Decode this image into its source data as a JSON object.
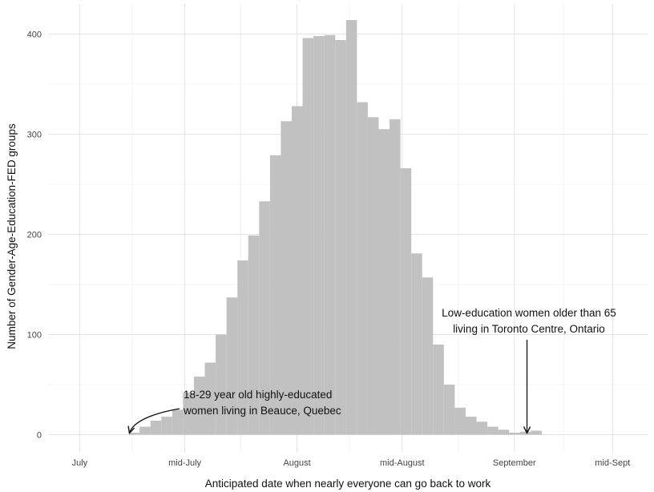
{
  "chart_data": {
    "type": "bar",
    "title": "",
    "xlabel": "Anticipated date when nearly everyone can go back to work",
    "ylabel": "Number of Gender-Age-Education-FED groups",
    "x_unit": "days after July 1",
    "x_ticks": [
      {
        "value": 0,
        "label": "July"
      },
      {
        "value": 15,
        "label": "mid-July"
      },
      {
        "value": 31,
        "label": "August"
      },
      {
        "value": 46,
        "label": "mid-August"
      },
      {
        "value": 62,
        "label": "September"
      },
      {
        "value": 76,
        "label": "mid-Sept"
      }
    ],
    "y_ticks": [
      0,
      100,
      200,
      300,
      400
    ],
    "xlim": [
      -4.5,
      81
    ],
    "ylim": [
      -18,
      430
    ],
    "bin_start": 7.0,
    "bin_width": 1.55,
    "values": [
      2,
      8,
      14,
      18,
      25,
      42,
      58,
      72,
      100,
      137,
      174,
      199,
      233,
      279,
      313,
      328,
      396,
      398,
      399,
      394,
      414,
      332,
      317,
      305,
      315,
      266,
      181,
      157,
      90,
      50,
      27,
      18,
      13,
      8,
      5,
      2,
      3,
      4
    ],
    "bar_color": "#c1c1c1",
    "grid": true,
    "annotations": [
      {
        "lines": [
          "18-29 year old highly-educated",
          "women living in Beauce, Quebec"
        ],
        "target_x": 7.1,
        "target_y": 0
      },
      {
        "lines": [
          "Low-education women older than 65",
          "living in Toronto Centre, Ontario"
        ],
        "target_x": 63.8,
        "target_y": 0
      }
    ]
  }
}
